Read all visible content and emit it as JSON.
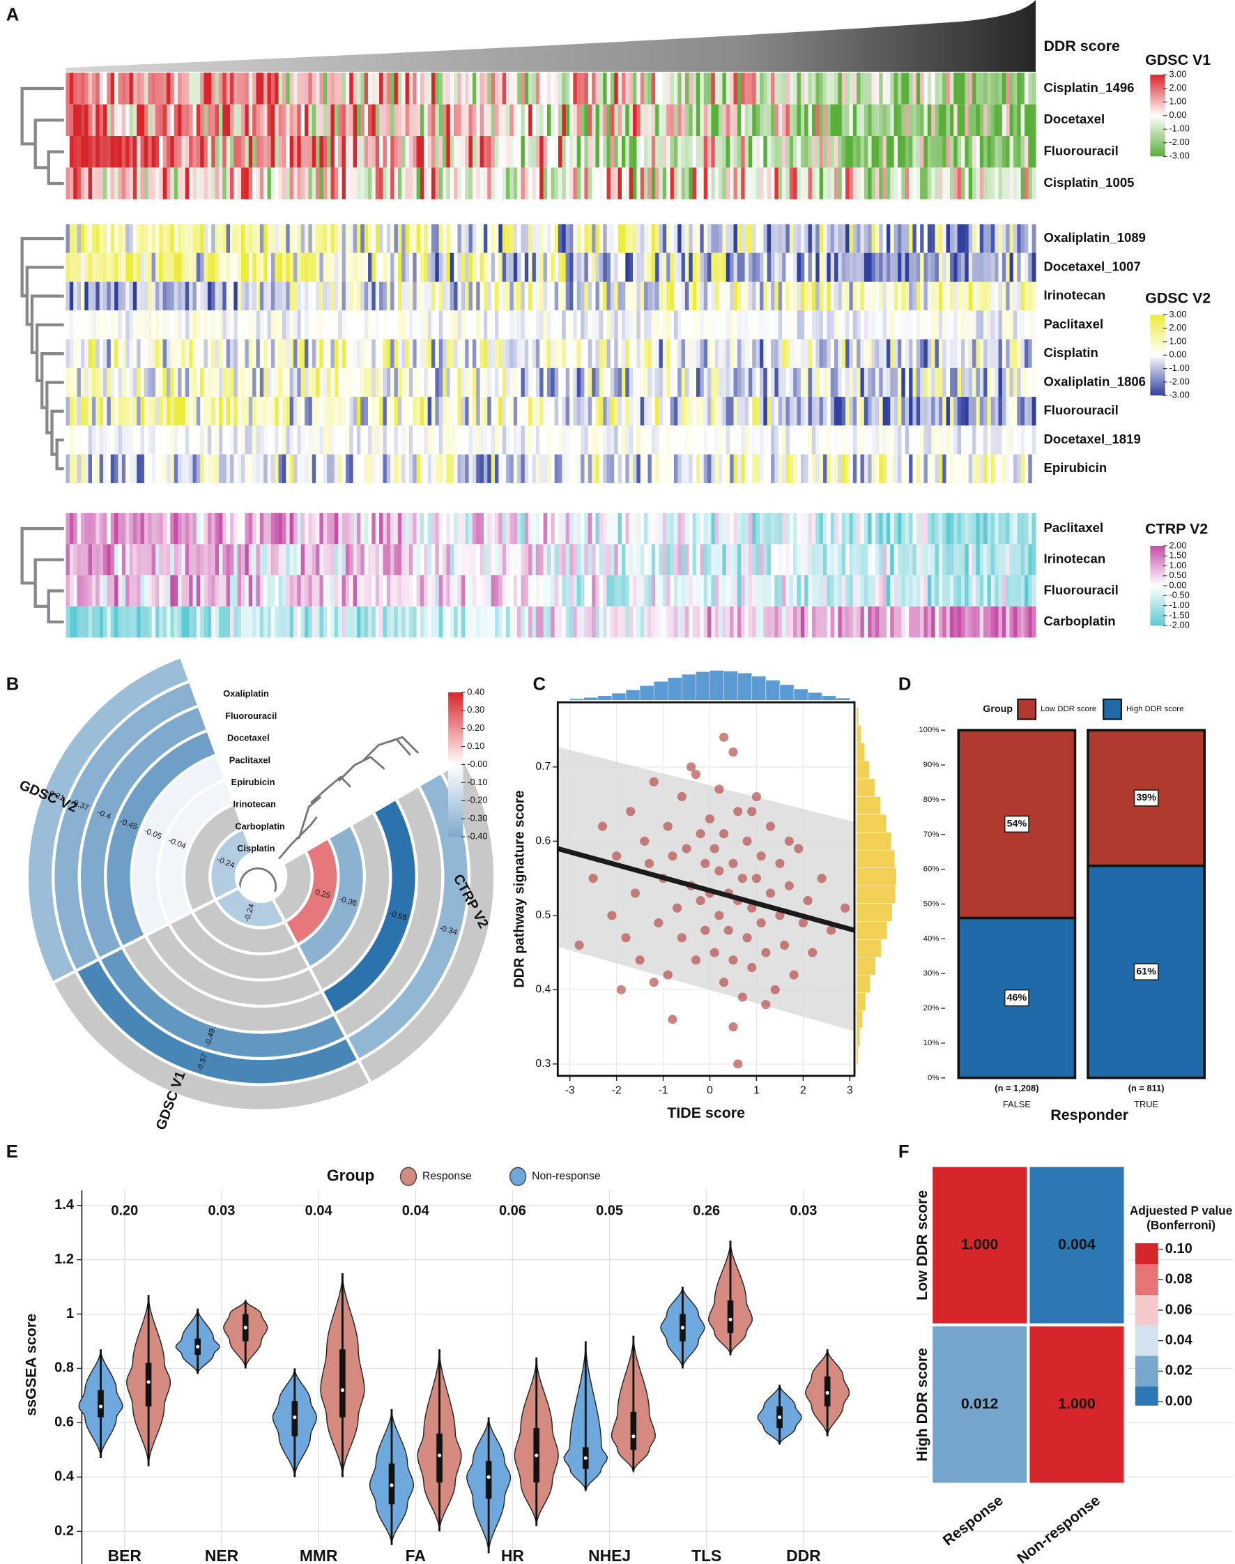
{
  "panel_labels": [
    "A",
    "B",
    "C",
    "D",
    "E",
    "F"
  ],
  "chart_data": [
    {
      "type": "heatmap",
      "annotation": "DDR score",
      "groups": [
        {
          "name": "GDSC V1",
          "rows": [
            "Cisplatin_1496",
            "Docetaxel",
            "Fluorouracil",
            "Cisplatin_1005"
          ],
          "colors": [
            "#d7262b",
            "#ffffff",
            "#5aae3a"
          ],
          "lim": [
            -3,
            3
          ],
          "ticks": [
            {
              "value": 3,
              "label": "3.00"
            },
            {
              "value": 2,
              "label": "2.00"
            },
            {
              "value": 1,
              "label": "1.00"
            },
            {
              "value": 0,
              "label": "0.00"
            },
            {
              "value": -1,
              "label": "-1.00"
            },
            {
              "value": -2,
              "label": "-2.00"
            },
            {
              "value": -3,
              "label": "-3.00"
            }
          ]
        },
        {
          "name": "GDSC V2",
          "rows": [
            "Oxaliplatin_1089",
            "Docetaxel_1007",
            "Irinotecan",
            "Paclitaxel",
            "Cisplatin",
            "Oxaliplatin_1806",
            "Fluorouracil",
            "Docetaxel_1819",
            "Epirubicin"
          ],
          "colors": [
            "#ecec3c",
            "#ffffff",
            "#2f3f9e"
          ],
          "lim": [
            -3,
            3
          ],
          "ticks": [
            {
              "value": 3,
              "label": "3.00"
            },
            {
              "value": 2,
              "label": "2.00"
            },
            {
              "value": 1,
              "label": "1.00"
            },
            {
              "value": 0,
              "label": "0.00"
            },
            {
              "value": -1,
              "label": "-1.00"
            },
            {
              "value": -2,
              "label": "-2.00"
            },
            {
              "value": -3,
              "label": "-3.00"
            }
          ]
        },
        {
          "name": "CTRP V2",
          "rows": [
            "Paclitaxel",
            "Irinotecan",
            "Fluorouracil",
            "Carboplatin"
          ],
          "colors": [
            "#c54ea6",
            "#ffffff",
            "#5ec9d2"
          ],
          "lim": [
            -2,
            2
          ],
          "ticks": [
            {
              "value": 2,
              "label": "2.00"
            },
            {
              "value": 1.5,
              "label": "1.50"
            },
            {
              "value": 1,
              "label": "1.00"
            },
            {
              "value": 0.5,
              "label": "0.50"
            },
            {
              "value": 0,
              "label": "0.00"
            },
            {
              "value": -0.5,
              "label": "-0.50"
            },
            {
              "value": -1,
              "label": "-1.00"
            },
            {
              "value": -1.5,
              "label": "-1.50"
            },
            {
              "value": -2,
              "label": "-2.00"
            }
          ]
        }
      ]
    },
    {
      "type": "polar_heatmap",
      "drugs": [
        "Oxaliplatin",
        "Fluorouracil",
        "Docetaxel",
        "Paclitaxel",
        "Epirubicin",
        "Irinotecan",
        "Carboplatin",
        "Cisplatin"
      ],
      "sectors": [
        {
          "name": "GDSC V2",
          "values": [
            -0.31,
            -0.37,
            -0.4,
            -0.45,
            -0.05,
            -0.04,
            null,
            -0.24
          ]
        },
        {
          "name": "GDSC V1",
          "values": [
            null,
            -0.57,
            -0.49,
            null,
            null,
            null,
            null,
            -0.24
          ]
        },
        {
          "name": "CTRP V2",
          "values": [
            null,
            -0.34,
            null,
            -0.66,
            null,
            -0.36,
            0.25,
            null
          ]
        }
      ],
      "missing_color": "#c8c8c8",
      "low_color": "#1f6aa8",
      "high_color": "#d7262b",
      "legend_ticks": [
        {
          "value": 0.4,
          "label": "0.40"
        },
        {
          "value": 0.3,
          "label": "0.30"
        },
        {
          "value": 0.2,
          "label": "0.20"
        },
        {
          "value": 0.1,
          "label": "0.10"
        },
        {
          "value": 0,
          "label": "-0.00"
        },
        {
          "value": -0.1,
          "label": "-0.10"
        },
        {
          "value": -0.2,
          "label": "-0.20"
        },
        {
          "value": -0.3,
          "label": "-0.30"
        },
        {
          "value": -0.4,
          "label": "-0.40"
        }
      ]
    },
    {
      "type": "scatter",
      "xlabel": "TIDE score",
      "ylabel": "DDR pathway signature score",
      "color": "#b5504d",
      "line_color": "#1a1a1a",
      "band_color": "#d9d9d9",
      "x": [
        -2.8,
        -2.5,
        -2.3,
        -2.1,
        -2.0,
        -1.8,
        -1.7,
        -1.6,
        -1.5,
        -1.4,
        -1.3,
        -1.2,
        -1.1,
        -1.0,
        -0.9,
        -0.9,
        -0.8,
        -0.7,
        -0.6,
        -0.6,
        -0.5,
        -0.4,
        -0.4,
        -0.3,
        -0.2,
        -0.2,
        -0.1,
        -0.1,
        0.0,
        0.0,
        0.1,
        0.1,
        0.2,
        0.2,
        0.2,
        0.3,
        0.3,
        0.4,
        0.4,
        0.5,
        0.5,
        0.5,
        0.6,
        0.6,
        0.7,
        0.7,
        0.8,
        0.8,
        0.9,
        0.9,
        1.0,
        1.0,
        1.1,
        1.1,
        1.2,
        1.3,
        1.3,
        1.4,
        1.5,
        1.5,
        1.6,
        1.7,
        1.8,
        1.9,
        2.0,
        2.1,
        2.2,
        2.4,
        2.6,
        2.9,
        -1.9,
        -0.8,
        0.3,
        0.6,
        1.2,
        -0.3,
        0.9,
        0.5,
        -1.2,
        1.7
      ],
      "y": [
        0.46,
        0.55,
        0.62,
        0.5,
        0.58,
        0.47,
        0.64,
        0.53,
        0.44,
        0.6,
        0.57,
        0.68,
        0.49,
        0.55,
        0.62,
        0.42,
        0.58,
        0.51,
        0.66,
        0.47,
        0.59,
        0.54,
        0.7,
        0.44,
        0.61,
        0.52,
        0.57,
        0.48,
        0.63,
        0.53,
        0.45,
        0.59,
        0.67,
        0.5,
        0.56,
        0.41,
        0.61,
        0.53,
        0.48,
        0.72,
        0.57,
        0.44,
        0.52,
        0.64,
        0.39,
        0.55,
        0.6,
        0.47,
        0.51,
        0.43,
        0.66,
        0.55,
        0.49,
        0.58,
        0.45,
        0.53,
        0.62,
        0.4,
        0.5,
        0.57,
        0.46,
        0.54,
        0.42,
        0.59,
        0.49,
        0.52,
        0.45,
        0.55,
        0.48,
        0.51,
        0.4,
        0.36,
        0.74,
        0.3,
        0.38,
        0.69,
        0.64,
        0.35,
        0.41,
        0.6
      ],
      "fit": {
        "x": [
          -3.26,
          3.1
        ],
        "y": [
          0.59,
          0.48
        ],
        "lower": [
          0.458,
          0.344
        ],
        "upper": [
          0.727,
          0.626
        ]
      },
      "x_hist": {
        "color": "#5b9bd5",
        "bins": [
          -3,
          -2.7,
          -2.4,
          -2.1,
          -1.8,
          -1.5,
          -1.2,
          -0.9,
          -0.6,
          -0.3,
          0,
          0.3,
          0.6,
          0.9,
          1.2,
          1.5,
          1.8,
          2.1,
          2.4,
          2.7,
          3
        ],
        "counts": [
          5,
          9,
          14,
          22,
          32,
          45,
          58,
          70,
          80,
          88,
          92,
          90,
          84,
          74,
          62,
          48,
          35,
          24,
          14,
          7
        ]
      },
      "y_hist": {
        "color": "#f2d056",
        "bins": [
          0.3,
          0.324,
          0.348,
          0.372,
          0.396,
          0.42,
          0.444,
          0.468,
          0.492,
          0.516,
          0.54,
          0.564,
          0.588,
          0.612,
          0.636,
          0.66,
          0.684,
          0.708,
          0.732,
          0.756,
          0.78
        ],
        "counts": [
          4,
          8,
          14,
          22,
          33,
          46,
          60,
          74,
          86,
          94,
          96,
          92,
          84,
          72,
          58,
          44,
          31,
          20,
          11,
          5
        ]
      },
      "xlim": [
        -3.26,
        3.1
      ],
      "ylim": [
        0.284,
        0.787
      ],
      "xticks": [
        -3,
        -2,
        -1,
        0,
        1,
        2,
        3
      ],
      "yticks": [
        0.3,
        0.4,
        0.5,
        0.6,
        0.7
      ],
      "grid": true
    },
    {
      "type": "stacked_bar",
      "xlabel": "Responder",
      "legend_title": "Group",
      "categories": [
        "FALSE",
        "TRUE"
      ],
      "n_labels": [
        "(n = 1,208)",
        "(n = 811)"
      ],
      "series": [
        {
          "name": "Low DDR score",
          "color": "#b03a2e",
          "values": [
            54,
            39
          ],
          "value_labels": [
            "54%",
            "39%"
          ]
        },
        {
          "name": "High DDR score",
          "color": "#1f6aa8",
          "values": [
            46,
            61
          ],
          "value_labels": [
            "46%",
            "61%"
          ]
        }
      ],
      "ylim": [
        0,
        100
      ],
      "yticks": [
        {
          "value": 0,
          "label": "0%"
        },
        {
          "value": 10,
          "label": "10%"
        },
        {
          "value": 20,
          "label": "20%"
        },
        {
          "value": 30,
          "label": "30%"
        },
        {
          "value": 40,
          "label": "40%"
        },
        {
          "value": 50,
          "label": "50%"
        },
        {
          "value": 60,
          "label": "60%"
        },
        {
          "value": 70,
          "label": "70%"
        },
        {
          "value": 80,
          "label": "80%"
        },
        {
          "value": 90,
          "label": "90%"
        },
        {
          "value": 100,
          "label": "100%"
        }
      ]
    },
    {
      "type": "violin",
      "ylabel": "ssGSEA score",
      "legend_title": "Group",
      "categories": [
        "BER",
        "NER",
        "MMR",
        "FA",
        "HR",
        "NHEJ",
        "TLS",
        "DDR"
      ],
      "p_values": [
        0.2,
        0.03,
        0.04,
        0.04,
        0.06,
        0.05,
        0.26,
        0.03
      ],
      "p_value_labels": [
        "0.20",
        "0.03",
        "0.04",
        "0.04",
        "0.06",
        "0.05",
        "0.26",
        "0.03"
      ],
      "series": [
        {
          "name": "Response",
          "color": "#d48a7e",
          "min": [
            0.44,
            0.8,
            0.4,
            0.2,
            0.22,
            0.42,
            0.85,
            0.55
          ],
          "q1": [
            0.66,
            0.9,
            0.62,
            0.38,
            0.38,
            0.5,
            0.93,
            0.66
          ],
          "median": [
            0.75,
            0.95,
            0.72,
            0.48,
            0.48,
            0.55,
            0.98,
            0.71
          ],
          "q3": [
            0.82,
            1.0,
            0.87,
            0.56,
            0.58,
            0.64,
            1.05,
            0.77
          ],
          "max": [
            1.07,
            1.05,
            1.15,
            0.87,
            0.84,
            0.92,
            1.27,
            0.87
          ]
        },
        {
          "name": "Non-response",
          "color": "#6fa8dc",
          "min": [
            0.47,
            0.78,
            0.4,
            0.15,
            0.12,
            0.35,
            0.8,
            0.52
          ],
          "q1": [
            0.62,
            0.85,
            0.55,
            0.3,
            0.32,
            0.43,
            0.9,
            0.58
          ],
          "median": [
            0.66,
            0.88,
            0.62,
            0.37,
            0.4,
            0.47,
            0.95,
            0.62
          ],
          "q3": [
            0.72,
            0.91,
            0.68,
            0.45,
            0.46,
            0.51,
            1.0,
            0.66
          ],
          "max": [
            0.87,
            1.02,
            0.8,
            0.65,
            0.62,
            0.9,
            1.1,
            0.74
          ]
        }
      ],
      "ylim": [
        0.08,
        1.455
      ],
      "yticks": [
        0.2,
        0.4,
        0.6,
        0.8,
        1.0,
        1.2,
        1.4
      ],
      "grid": true
    },
    {
      "type": "matrix",
      "legend_title": "Adjuested P value",
      "legend_subtitle": "(Bonferroni)",
      "rows": [
        "Low DDR score",
        "High DDR score"
      ],
      "columns": [
        "Response",
        "Non-response"
      ],
      "values": [
        [
          1,
          0.004
        ],
        [
          0.012,
          1
        ]
      ],
      "value_labels": [
        [
          "1.000",
          "0.004"
        ],
        [
          "0.012",
          "1.000"
        ]
      ],
      "colors": [
        [
          "#d7262b",
          "#2b78b4"
        ],
        [
          "#76a5cb",
          "#d7262b"
        ]
      ],
      "legend_ticks": [
        {
          "value": 0.1,
          "label": "0.10"
        },
        {
          "value": 0.08,
          "label": "0.08"
        },
        {
          "value": 0.06,
          "label": "0.06"
        },
        {
          "value": 0.04,
          "label": "0.04"
        },
        {
          "value": 0.02,
          "label": "0.02"
        },
        {
          "value": 0,
          "label": "0.00"
        }
      ],
      "legend_colors": [
        "#d7262b",
        "#e57575",
        "#f4c9c9",
        "#d2e2ef",
        "#77a7cc",
        "#2b78b4"
      ]
    }
  ]
}
